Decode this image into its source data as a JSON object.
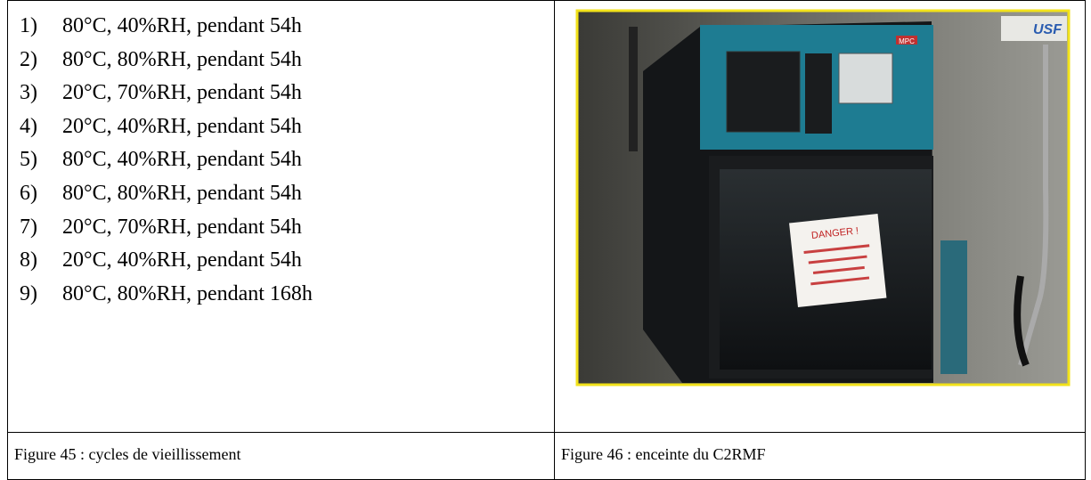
{
  "table": {
    "list": [
      {
        "marker": "1)",
        "text": "80°C, 40%RH, pendant 54h"
      },
      {
        "marker": "2)",
        "text": "80°C, 80%RH, pendant 54h"
      },
      {
        "marker": "3)",
        "text": "20°C, 70%RH, pendant 54h"
      },
      {
        "marker": "4)",
        "text": "20°C, 40%RH, pendant 54h"
      },
      {
        "marker": "5)",
        "text": "80°C, 40%RH, pendant 54h"
      },
      {
        "marker": "6)",
        "text": "80°C, 80%RH, pendant 54h"
      },
      {
        "marker": "7)",
        "text": "20°C, 70%RH, pendant 54h"
      },
      {
        "marker": "8)",
        "text": "20°C, 40%RH, pendant 54h"
      },
      {
        "marker": "9)",
        "text": "80°C, 80%RH, pendant 168h"
      }
    ],
    "captions": [
      "Figure 45 : cycles de vieillissement",
      "Figure 46 : enceinte du C2RMF"
    ],
    "photo": {
      "sign": "DANGER !",
      "brand": "USF",
      "maker": "MPC"
    }
  }
}
